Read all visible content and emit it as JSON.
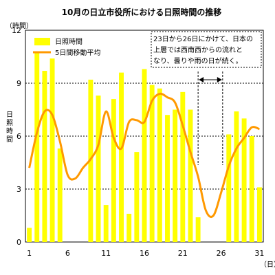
{
  "chart_data": {
    "type": "bar",
    "title": "10月の日立市役所における日照時間の推移",
    "ylabel": "日照時間",
    "yunit": "（時間）",
    "xunit": "（日）",
    "ylim": [
      0,
      12
    ],
    "yticks": [
      0,
      3,
      6,
      9,
      12
    ],
    "xticks": [
      1,
      6,
      11,
      16,
      21,
      26,
      31
    ],
    "grid": "horizontal-dashed",
    "legend_position": "top-left",
    "annotation": {
      "lines": [
        "23日から26日にかけて、日本の",
        "上層では西南西からの流れと",
        "なり、曇りや雨の日が続く。"
      ],
      "range": [
        22,
        26
      ]
    },
    "x": [
      1,
      2,
      3,
      4,
      5,
      6,
      7,
      8,
      9,
      10,
      11,
      12,
      13,
      14,
      15,
      16,
      17,
      18,
      19,
      20,
      21,
      22,
      23,
      24,
      25,
      26,
      27,
      28,
      29,
      30,
      31
    ],
    "series": [
      {
        "name": "日照時間",
        "kind": "bar",
        "color": "#ffff00",
        "values": [
          0.8,
          10.8,
          9.7,
          10.4,
          5.3,
          0,
          0,
          0,
          9.2,
          8.3,
          2.1,
          8.1,
          9.6,
          1.6,
          5.1,
          9.8,
          8.9,
          8.7,
          7.2,
          7.5,
          8.5,
          7.5,
          1.4,
          0,
          0,
          0,
          6.1,
          7.4,
          7.0,
          6.0,
          3.1
        ]
      },
      {
        "name": "5日間移動平均",
        "kind": "line",
        "color": "#ff9900",
        "values": [
          4.2,
          6.2,
          7.4,
          7.2,
          5.7,
          3.8,
          3.6,
          4.2,
          4.7,
          5.5,
          7.4,
          5.9,
          5.3,
          6.8,
          6.9,
          6.8,
          8.0,
          8.4,
          8.2,
          7.9,
          6.6,
          5.1,
          3.7,
          1.8,
          1.5,
          2.8,
          4.3,
          5.3,
          5.9,
          6.5,
          6.4
        ]
      }
    ]
  }
}
